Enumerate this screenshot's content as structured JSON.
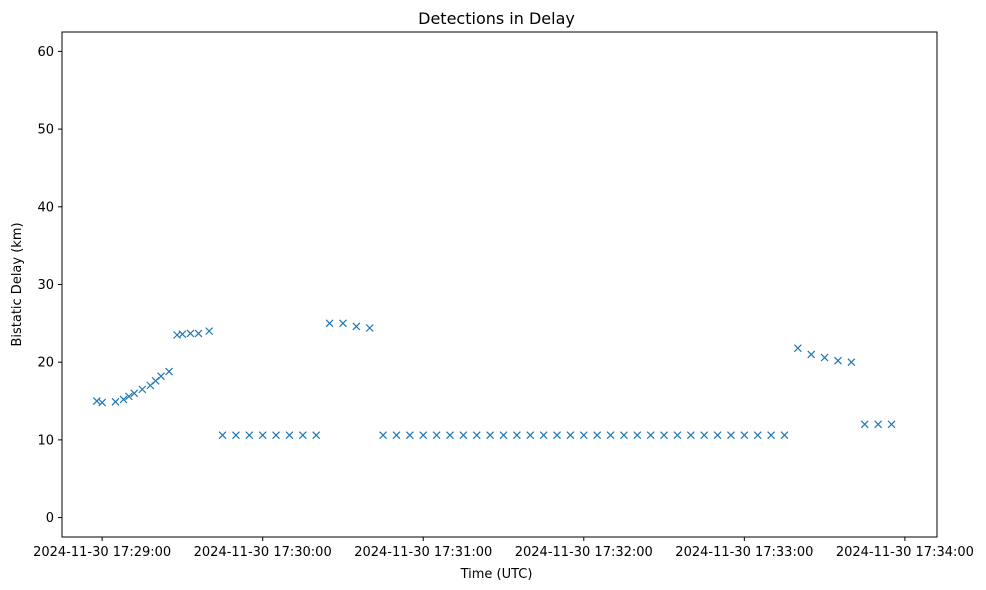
{
  "chart_data": {
    "type": "scatter",
    "title": "Detections in Delay",
    "xlabel": "Time (UTC)",
    "ylabel": "Bistatic Delay (km)",
    "marker": "x",
    "color": "#1f77b4",
    "grid": false,
    "x_ticks": [
      "2024-11-30 17:29:00",
      "2024-11-30 17:30:00",
      "2024-11-30 17:31:00",
      "2024-11-30 17:32:00",
      "2024-11-30 17:33:00",
      "2024-11-30 17:34:00"
    ],
    "xlim": [
      "2024-11-30 17:28:45",
      "2024-11-30 17:34:12"
    ],
    "y_ticks": [
      0,
      10,
      20,
      30,
      40,
      50,
      60
    ],
    "ylim": [
      -2.5,
      62.5
    ],
    "series": [
      {
        "points_note_free": true,
        "x": [
          "2024-11-30 17:28:58",
          "2024-11-30 17:29:00",
          "2024-11-30 17:29:05",
          "2024-11-30 17:29:08",
          "2024-11-30 17:29:10",
          "2024-11-30 17:29:12",
          "2024-11-30 17:29:15",
          "2024-11-30 17:29:18",
          "2024-11-30 17:29:20",
          "2024-11-30 17:29:22",
          "2024-11-30 17:29:25",
          "2024-11-30 17:29:28",
          "2024-11-30 17:29:30",
          "2024-11-30 17:29:33",
          "2024-11-30 17:29:36",
          "2024-11-30 17:29:40",
          "2024-11-30 17:29:45",
          "2024-11-30 17:29:50",
          "2024-11-30 17:29:55",
          "2024-11-30 17:30:00",
          "2024-11-30 17:30:05",
          "2024-11-30 17:30:10",
          "2024-11-30 17:30:15",
          "2024-11-30 17:30:20",
          "2024-11-30 17:30:25",
          "2024-11-30 17:30:30",
          "2024-11-30 17:30:35",
          "2024-11-30 17:30:40",
          "2024-11-30 17:30:45",
          "2024-11-30 17:30:50",
          "2024-11-30 17:30:55",
          "2024-11-30 17:31:00",
          "2024-11-30 17:31:05",
          "2024-11-30 17:31:10",
          "2024-11-30 17:31:15",
          "2024-11-30 17:31:20",
          "2024-11-30 17:31:25",
          "2024-11-30 17:31:30",
          "2024-11-30 17:31:35",
          "2024-11-30 17:31:40",
          "2024-11-30 17:31:45",
          "2024-11-30 17:31:50",
          "2024-11-30 17:31:55",
          "2024-11-30 17:32:00",
          "2024-11-30 17:32:05",
          "2024-11-30 17:32:10",
          "2024-11-30 17:32:15",
          "2024-11-30 17:32:20",
          "2024-11-30 17:32:25",
          "2024-11-30 17:32:30",
          "2024-11-30 17:32:35",
          "2024-11-30 17:32:40",
          "2024-11-30 17:32:45",
          "2024-11-30 17:32:50",
          "2024-11-30 17:32:55",
          "2024-11-30 17:33:00",
          "2024-11-30 17:33:05",
          "2024-11-30 17:33:10",
          "2024-11-30 17:33:15",
          "2024-11-30 17:33:20",
          "2024-11-30 17:33:25",
          "2024-11-30 17:33:30",
          "2024-11-30 17:33:35",
          "2024-11-30 17:33:40",
          "2024-11-30 17:33:45",
          "2024-11-30 17:33:50",
          "2024-11-30 17:33:55"
        ],
        "y": [
          15.0,
          14.8,
          14.9,
          15.2,
          15.6,
          16.0,
          16.5,
          17.0,
          17.6,
          18.2,
          18.8,
          23.5,
          23.6,
          23.7,
          23.7,
          24.0,
          10.6,
          10.6,
          10.6,
          10.6,
          10.6,
          10.6,
          10.6,
          10.6,
          25.0,
          25.0,
          24.6,
          24.4,
          10.6,
          10.6,
          10.6,
          10.6,
          10.6,
          10.6,
          10.6,
          10.6,
          10.6,
          10.6,
          10.6,
          10.6,
          10.6,
          10.6,
          10.6,
          10.6,
          10.6,
          10.6,
          10.6,
          10.6,
          10.6,
          10.6,
          10.6,
          10.6,
          10.6,
          10.6,
          10.6,
          10.6,
          10.6,
          10.6,
          10.6,
          21.8,
          21.0,
          20.6,
          20.2,
          20.0,
          12.0,
          12.0,
          12.0
        ]
      }
    ]
  }
}
